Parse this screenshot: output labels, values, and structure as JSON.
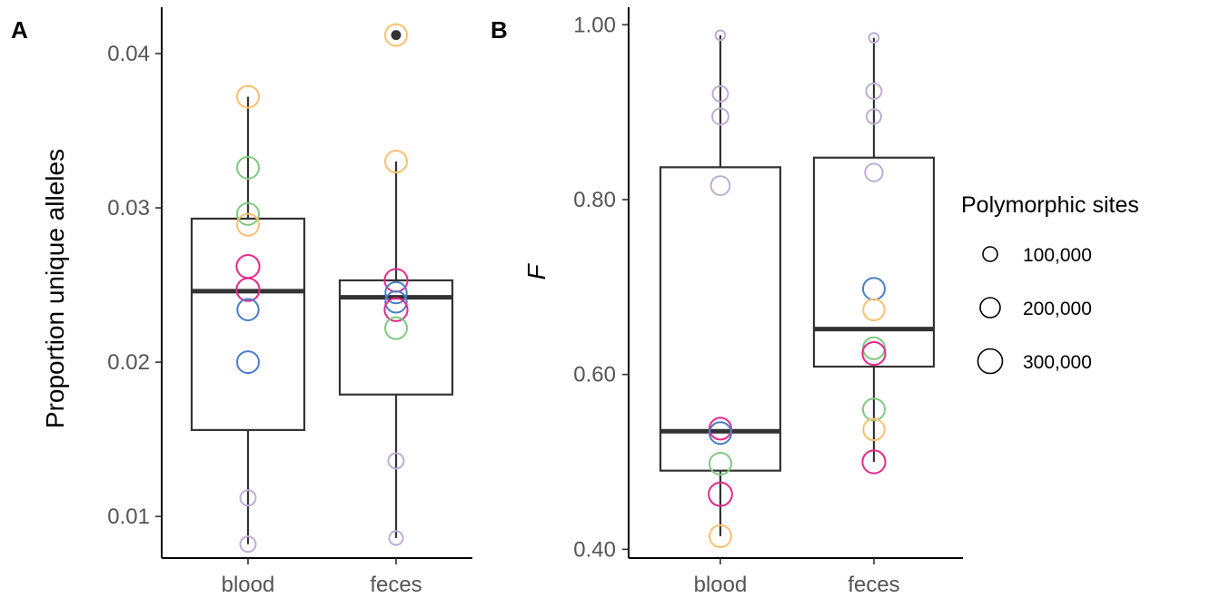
{
  "panels": {
    "A": {
      "letter": "A",
      "ylabel": "Proportion unique alleles",
      "yticks": [
        "0.01",
        "0.02",
        "0.03",
        "0.04"
      ],
      "categories": [
        "blood",
        "feces"
      ]
    },
    "B": {
      "letter": "B",
      "ylabel": "F",
      "yticks": [
        "0.40",
        "0.60",
        "0.80",
        "1.00"
      ],
      "categories": [
        "blood",
        "feces"
      ]
    }
  },
  "legend": {
    "title": "Polymorphic sites",
    "items": [
      "100,000",
      "200,000",
      "300,000"
    ]
  },
  "colors": {
    "orange": "#fdbf6f",
    "green": "#7fc97f",
    "magenta": "#e7298a",
    "blue": "#4a7ec8",
    "lavender": "#beaed4",
    "box": "#333333"
  },
  "chart_data": [
    {
      "type": "box",
      "panel": "A",
      "ylabel": "Proportion unique alleles",
      "xlabel": "",
      "ylim": [
        0.0073,
        0.043
      ],
      "categories": [
        "blood",
        "feces"
      ],
      "boxes": [
        {
          "category": "blood",
          "q1": 0.0156,
          "median": 0.0246,
          "q3": 0.0293,
          "whisker_low": 0.0082,
          "whisker_high": 0.0372
        },
        {
          "category": "feces",
          "q1": 0.0179,
          "median": 0.0242,
          "q3": 0.0253,
          "whisker_low": 0.0086,
          "whisker_high": 0.033,
          "outliers": [
            0.0412
          ]
        }
      ],
      "points": [
        {
          "category": "blood",
          "y": 0.0372,
          "color": "orange",
          "sites": 200000
        },
        {
          "category": "blood",
          "y": 0.0326,
          "color": "green",
          "sites": 200000
        },
        {
          "category": "blood",
          "y": 0.0296,
          "color": "green",
          "sites": 200000
        },
        {
          "category": "blood",
          "y": 0.0289,
          "color": "orange",
          "sites": 200000
        },
        {
          "category": "blood",
          "y": 0.0262,
          "color": "magenta",
          "sites": 220000
        },
        {
          "category": "blood",
          "y": 0.0247,
          "color": "magenta",
          "sites": 220000
        },
        {
          "category": "blood",
          "y": 0.0234,
          "color": "blue",
          "sites": 190000
        },
        {
          "category": "blood",
          "y": 0.02,
          "color": "blue",
          "sites": 200000
        },
        {
          "category": "blood",
          "y": 0.0112,
          "color": "lavender",
          "sites": 100000
        },
        {
          "category": "blood",
          "y": 0.0082,
          "color": "lavender",
          "sites": 100000
        },
        {
          "category": "feces",
          "y": 0.0412,
          "color": "orange",
          "sites": 200000
        },
        {
          "category": "feces",
          "y": 0.033,
          "color": "orange",
          "sites": 200000
        },
        {
          "category": "feces",
          "y": 0.0253,
          "color": "magenta",
          "sites": 220000
        },
        {
          "category": "feces",
          "y": 0.0245,
          "color": "blue",
          "sites": 190000
        },
        {
          "category": "feces",
          "y": 0.0239,
          "color": "blue",
          "sites": 190000
        },
        {
          "category": "feces",
          "y": 0.0234,
          "color": "magenta",
          "sites": 220000
        },
        {
          "category": "feces",
          "y": 0.0222,
          "color": "green",
          "sites": 200000
        },
        {
          "category": "feces",
          "y": 0.0136,
          "color": "lavender",
          "sites": 100000
        },
        {
          "category": "feces",
          "y": 0.0086,
          "color": "lavender",
          "sites": 80000
        }
      ]
    },
    {
      "type": "box",
      "panel": "B",
      "ylabel": "F",
      "xlabel": "",
      "ylim": [
        0.39,
        1.02
      ],
      "categories": [
        "blood",
        "feces"
      ],
      "boxes": [
        {
          "category": "blood",
          "q1": 0.49,
          "median": 0.535,
          "q3": 0.837,
          "whisker_low": 0.415,
          "whisker_high": 0.988
        },
        {
          "category": "feces",
          "q1": 0.609,
          "median": 0.652,
          "q3": 0.848,
          "whisker_low": 0.5,
          "whisker_high": 0.985
        }
      ],
      "points": [
        {
          "category": "blood",
          "y": 0.988,
          "color": "lavender",
          "sites": 40000
        },
        {
          "category": "blood",
          "y": 0.921,
          "color": "lavender",
          "sites": 100000
        },
        {
          "category": "blood",
          "y": 0.895,
          "color": "lavender",
          "sites": 110000
        },
        {
          "category": "blood",
          "y": 0.816,
          "color": "lavender",
          "sites": 150000
        },
        {
          "category": "blood",
          "y": 0.538,
          "color": "magenta",
          "sites": 200000
        },
        {
          "category": "blood",
          "y": 0.533,
          "color": "blue",
          "sites": 200000
        },
        {
          "category": "blood",
          "y": 0.498,
          "color": "green",
          "sites": 200000
        },
        {
          "category": "blood",
          "y": 0.463,
          "color": "magenta",
          "sites": 230000
        },
        {
          "category": "blood",
          "y": 0.415,
          "color": "orange",
          "sites": 200000
        },
        {
          "category": "feces",
          "y": 0.985,
          "color": "lavender",
          "sites": 40000
        },
        {
          "category": "feces",
          "y": 0.924,
          "color": "lavender",
          "sites": 100000
        },
        {
          "category": "feces",
          "y": 0.895,
          "color": "lavender",
          "sites": 90000
        },
        {
          "category": "feces",
          "y": 0.831,
          "color": "lavender",
          "sites": 130000
        },
        {
          "category": "feces",
          "y": 0.698,
          "color": "blue",
          "sites": 200000
        },
        {
          "category": "feces",
          "y": 0.674,
          "color": "orange",
          "sites": 190000
        },
        {
          "category": "feces",
          "y": 0.63,
          "color": "green",
          "sites": 200000
        },
        {
          "category": "feces",
          "y": 0.624,
          "color": "magenta",
          "sites": 220000
        },
        {
          "category": "feces",
          "y": 0.56,
          "color": "green",
          "sites": 200000
        },
        {
          "category": "feces",
          "y": 0.537,
          "color": "orange",
          "sites": 190000
        },
        {
          "category": "feces",
          "y": 0.5,
          "color": "magenta",
          "sites": 220000
        }
      ]
    }
  ]
}
